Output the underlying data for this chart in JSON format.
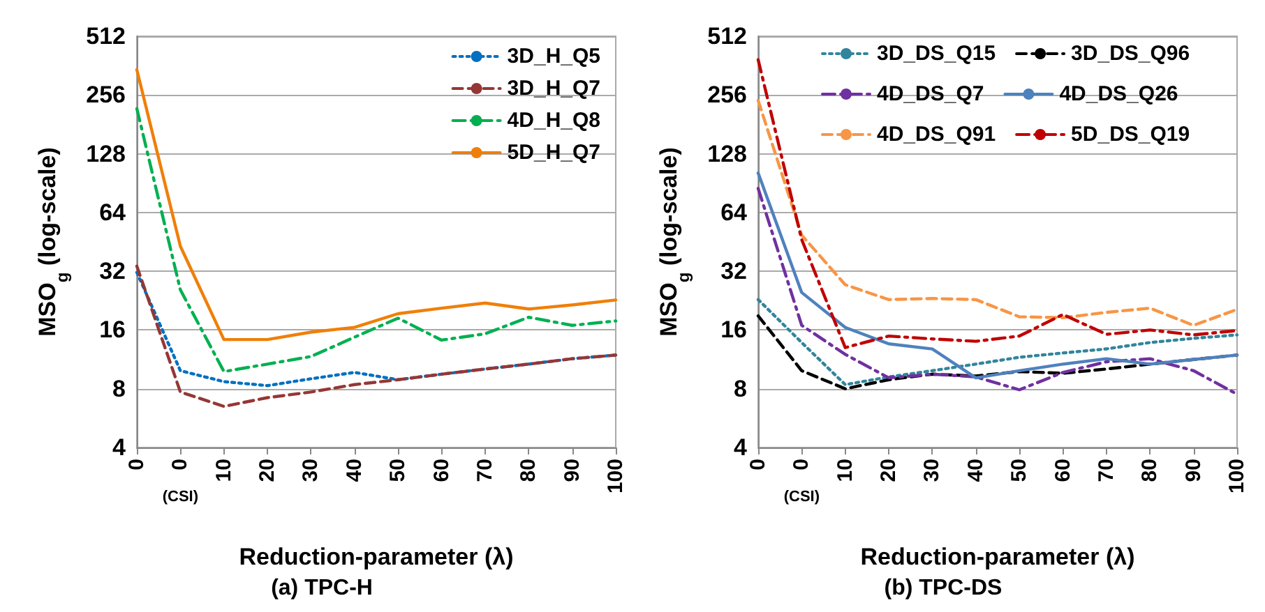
{
  "chart_data": [
    {
      "type": "line",
      "title": "(a) TPC-H",
      "xlabel": "Reduction-parameter (λ)",
      "ylabel": "MSO$_{g}$ (log-scale)",
      "categories": [
        "0",
        "0",
        "10",
        "20",
        "30",
        "40",
        "50",
        "60",
        "70",
        "80",
        "90",
        "100"
      ],
      "annotations": [
        "(CSI)"
      ],
      "log": true,
      "ylim": [
        4,
        512
      ],
      "yticks": [
        4,
        8,
        16,
        32,
        64,
        128,
        256,
        512
      ],
      "grid": "y",
      "legend": "top right",
      "marker": "none",
      "series": [
        {
          "name": "3D_H_Q5",
          "color": "#0070c0",
          "line_style": "dotted",
          "values": [
            31.6,
            9.9,
            8.7,
            8.3,
            9,
            9.7,
            8.9,
            9.5,
            10.1,
            10.7,
            11.4,
            11.9
          ]
        },
        {
          "name": "3D_H_Q7",
          "color": "#953735",
          "line_style": "dashed",
          "values": [
            34,
            7.7,
            6.5,
            7.2,
            7.7,
            8.4,
            8.9,
            9.5,
            10.1,
            10.7,
            11.4,
            11.9
          ]
        },
        {
          "name": "4D_H_Q8",
          "color": "#00b050",
          "line_style": "dashdot",
          "values": [
            218,
            25.7,
            9.8,
            10.7,
            11.7,
            14.7,
            18.4,
            14.2,
            15.3,
            18.6,
            16.9,
            17.8
          ]
        },
        {
          "name": "5D_H_Q7",
          "color": "#f07f09",
          "line_style": "solid",
          "values": [
            345,
            43,
            14.3,
            14.3,
            15.6,
            16.5,
            19.4,
            20.7,
            22,
            20.5,
            21.5,
            22.8
          ]
        }
      ]
    },
    {
      "type": "line",
      "title": "(b) TPC-DS",
      "xlabel": "Reduction-parameter (λ)",
      "ylabel": "MSO$_{g}$ (log-scale)",
      "categories": [
        "0",
        "0",
        "10",
        "20",
        "30",
        "40",
        "50",
        "60",
        "70",
        "80",
        "90",
        "100"
      ],
      "annotations": [
        "(CSI)"
      ],
      "log": true,
      "ylim": [
        4,
        512
      ],
      "yticks": [
        4,
        8,
        16,
        32,
        64,
        128,
        256,
        512
      ],
      "grid": "y",
      "legend": "top",
      "marker": "none",
      "series": [
        {
          "name": "3D_DS_Q15",
          "color": "#31859c",
          "line_style": "dotted",
          "values": [
            22.9,
            13.8,
            8.4,
            9.2,
            9.9,
            10.7,
            11.6,
            12.2,
            12.8,
            13.8,
            14.5,
            15.1
          ]
        },
        {
          "name": "3D_DS_Q96",
          "color": "#000000",
          "line_style": "dashed",
          "values": [
            18.9,
            9.9,
            8,
            8.9,
            9.5,
            9.3,
            9.8,
            9.6,
            10.1,
            10.7,
            11.3,
            11.9
          ]
        },
        {
          "name": "4D_DS_Q7",
          "color": "#7030a0",
          "line_style": "dashdot",
          "values": [
            85,
            16.9,
            12,
            9.1,
            9.5,
            9.2,
            7.9,
            9.7,
            11,
            11.4,
            9.9,
            7.5
          ]
        },
        {
          "name": "4D_DS_Q26",
          "color": "#4f81bd",
          "line_style": "solid",
          "values": [
            102,
            24.9,
            16.5,
            13.6,
            12.8,
            9.1,
            9.9,
            10.7,
            11.4,
            10.7,
            11.3,
            11.9
          ]
        },
        {
          "name": "4D_DS_Q91",
          "color": "#f79646",
          "line_style": "dashed",
          "values": [
            240,
            49,
            27.3,
            22.9,
            23.2,
            22.9,
            18.7,
            18.5,
            19.7,
            20.7,
            16.9,
            20.4
          ]
        },
        {
          "name": "5D_DS_Q19",
          "color": "#c00000",
          "line_style": "dashdot",
          "values": [
            388,
            46.5,
            13,
            14.9,
            14.4,
            14,
            14.9,
            19.2,
            15.2,
            16,
            15.1,
            15.9
          ]
        }
      ]
    }
  ]
}
